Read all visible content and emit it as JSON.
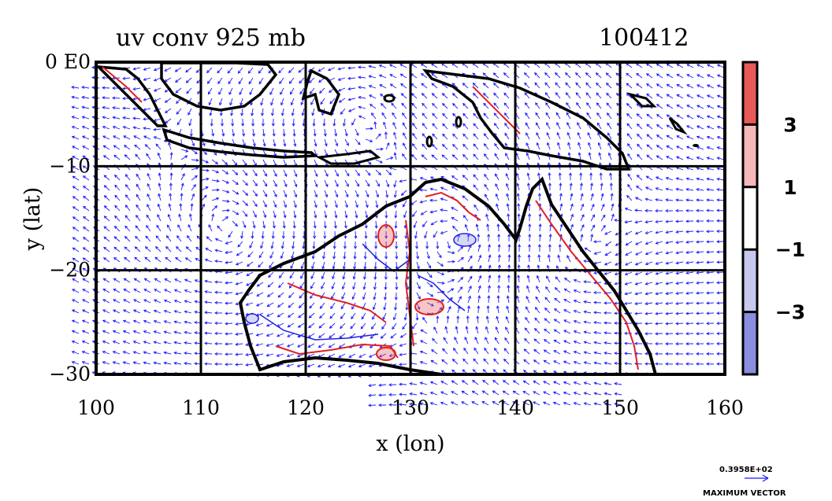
{
  "chart_data": {
    "type": "vector-field",
    "title": "uv conv 925 mb",
    "date_label": "100412",
    "xlabel": "x (lon)",
    "ylabel": "y (lat)",
    "xlim": [
      100,
      160
    ],
    "ylim": [
      -30,
      0
    ],
    "x_ticks": [
      "100",
      "110",
      "120",
      "130",
      "140",
      "150",
      "160"
    ],
    "y_ticks": [
      {
        "value": 0,
        "label": "0 E0"
      },
      {
        "value": -10,
        "label": "−10"
      },
      {
        "value": -20,
        "label": "−20"
      },
      {
        "value": -30,
        "label": "−30"
      }
    ],
    "grid": true,
    "colorbar": {
      "levels": [
        {
          "from": 1,
          "to": 3,
          "color": "#f5b8b8"
        },
        {
          "from": 3,
          "to": 5,
          "color": "#e85a5a"
        },
        {
          "from": -1,
          "to": 1,
          "color": "#ffffff"
        },
        {
          "from": -3,
          "to": -1,
          "color": "#c6c8ee"
        },
        {
          "from": -5,
          "to": -3,
          "color": "#8a8ee0"
        }
      ],
      "tick_labels": [
        "3",
        "1",
        "−1",
        "−3"
      ]
    },
    "vector_color": "#1a1aff",
    "positive_contour_color": "#e02020",
    "negative_contour_color": "#2020e0",
    "reference_vector": {
      "value": "0.3958E+02",
      "label": "MAXIMUM VECTOR"
    }
  }
}
